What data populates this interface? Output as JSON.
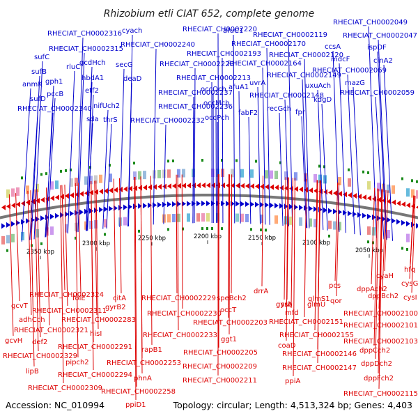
{
  "title": "Rhizobium etli CIAT 652, complete genome",
  "footer": {
    "accession": "Accession: NC_010994",
    "stats": "Topology: circular; Length: 4,513,324 bp; Genes: 4,403"
  },
  "colors": {
    "forward": "#0000cc",
    "reverse": "#dd0000",
    "backbone": "#777777",
    "tick": "#1a8a1a"
  },
  "ticks": [
    "2350 kbp",
    "2300 kbp",
    "2250 kbp",
    "2200 kbp",
    "2150 kbp",
    "2100 kbp",
    "2050 kbp"
  ],
  "top_genes": [
    "RHECIAT_CH0002316",
    "cyach",
    "RHECIAT_CH0002220",
    "afuC1",
    "RHECIAT_CH0002119",
    "RHECIAT_CH0002049",
    "RHECIAT_CH0002315",
    "RHECIAT_CH0002240",
    "RHECIAT_CH0002170",
    "RHECIAT_CH0002047",
    "sufC",
    "RHECIAT_CH0002193",
    "ccsA",
    "ispDF",
    "gcdHch",
    "secG",
    "RHECIAT_CH0002228",
    "RHECIAT_CH0002120",
    "mdcF",
    "cinA2",
    "sufB",
    "rluC",
    "hbdA1",
    "RHECIAT_CH0002164",
    "RHECIAT_CH0002069",
    "anmK",
    "gph1",
    "deaD",
    "RHECIAT_CH0002213",
    "afuA1",
    "uvrA",
    "RHECIAT_CH0002149",
    "uxuAch",
    "mazG",
    "etf2",
    "occQch",
    "RHECIAT_CH0002237",
    "pccB",
    "RHECIAT_CH0002148",
    "RHECIAT_CH0002059",
    "kdgD",
    "sufD",
    "fabF2",
    "RHECIAT_CH0002236",
    "occMch",
    "recGch",
    "nifUch2",
    "RHECIAT_CH0002340",
    "occPch",
    "fpr",
    "sda",
    "thrS",
    "RHECIAT_CH0002232"
  ],
  "bottom_genes": [
    "drrA",
    "RHECIAT_CH0002324",
    "RHECIAT_CH0002229",
    "speBch2",
    "folE",
    "citA",
    "ssb",
    "dppAch2",
    "cyaH",
    "hfq",
    "gcvT",
    "gyrB2",
    "occT",
    "gyrA",
    "glmU",
    "pcs",
    "dppBch2",
    "cysG",
    "RHECIAT_CH0002311",
    "RHECIAT_CH0002230",
    "qor",
    "glmS1",
    "cysI",
    "adhCch",
    "RHECIAT_CH0002100",
    "RHECIAT_CH0002283",
    "RHECIAT_CH0002203",
    "mfd",
    "RHECIAT_CH0002151",
    "RHECIAT_CH0002101",
    "gcvH",
    "hisI",
    "RHECIAT_CH0002321",
    "ggt1",
    "RHECIAT_CH0002233",
    "def2",
    "RHECIAT_CH0002155",
    "RHECIAT_CH0002103",
    "coaD",
    "RHECIAT_CH0002291",
    "dppCch2",
    "RHECIAT_CH0002205",
    "rapB1",
    "RHECIAT_CH0002329",
    "RHECIAT_CH0002146",
    "pipch2",
    "RHECIAT_CH0002253",
    "dppDch2",
    "RHECIAT_CH0002209",
    "RHECIAT_CH0002147",
    "lipB",
    "RHECIAT_CH0002294",
    "phnA",
    "RHECIAT_CH0002211",
    "dppFch2",
    "ppiA",
    "RHECIAT_CH0002309",
    "RHECIAT_CH0002258",
    "RHECIAT_CH0002115",
    "ppiD1"
  ]
}
